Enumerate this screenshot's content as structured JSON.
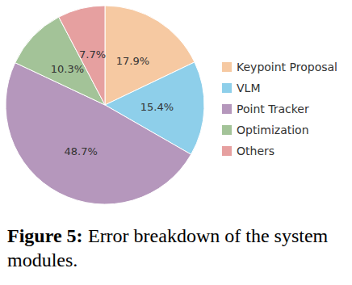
{
  "chart_data": {
    "type": "pie",
    "title": "Figure 5: Error breakdown of the system modules.",
    "categories": [
      "Keypoint Proposal",
      "VLM",
      "Point Tracker",
      "Optimization",
      "Others"
    ],
    "values": [
      17.9,
      15.4,
      48.7,
      10.3,
      7.7
    ],
    "value_labels": [
      "17.9%",
      "15.4%",
      "48.7%",
      "10.3%",
      "7.7%"
    ],
    "colors": [
      "#f6c9a2",
      "#8ecfea",
      "#b597bc",
      "#a3c398",
      "#e6a0a0"
    ],
    "data_labels": true,
    "legend": "right"
  }
}
